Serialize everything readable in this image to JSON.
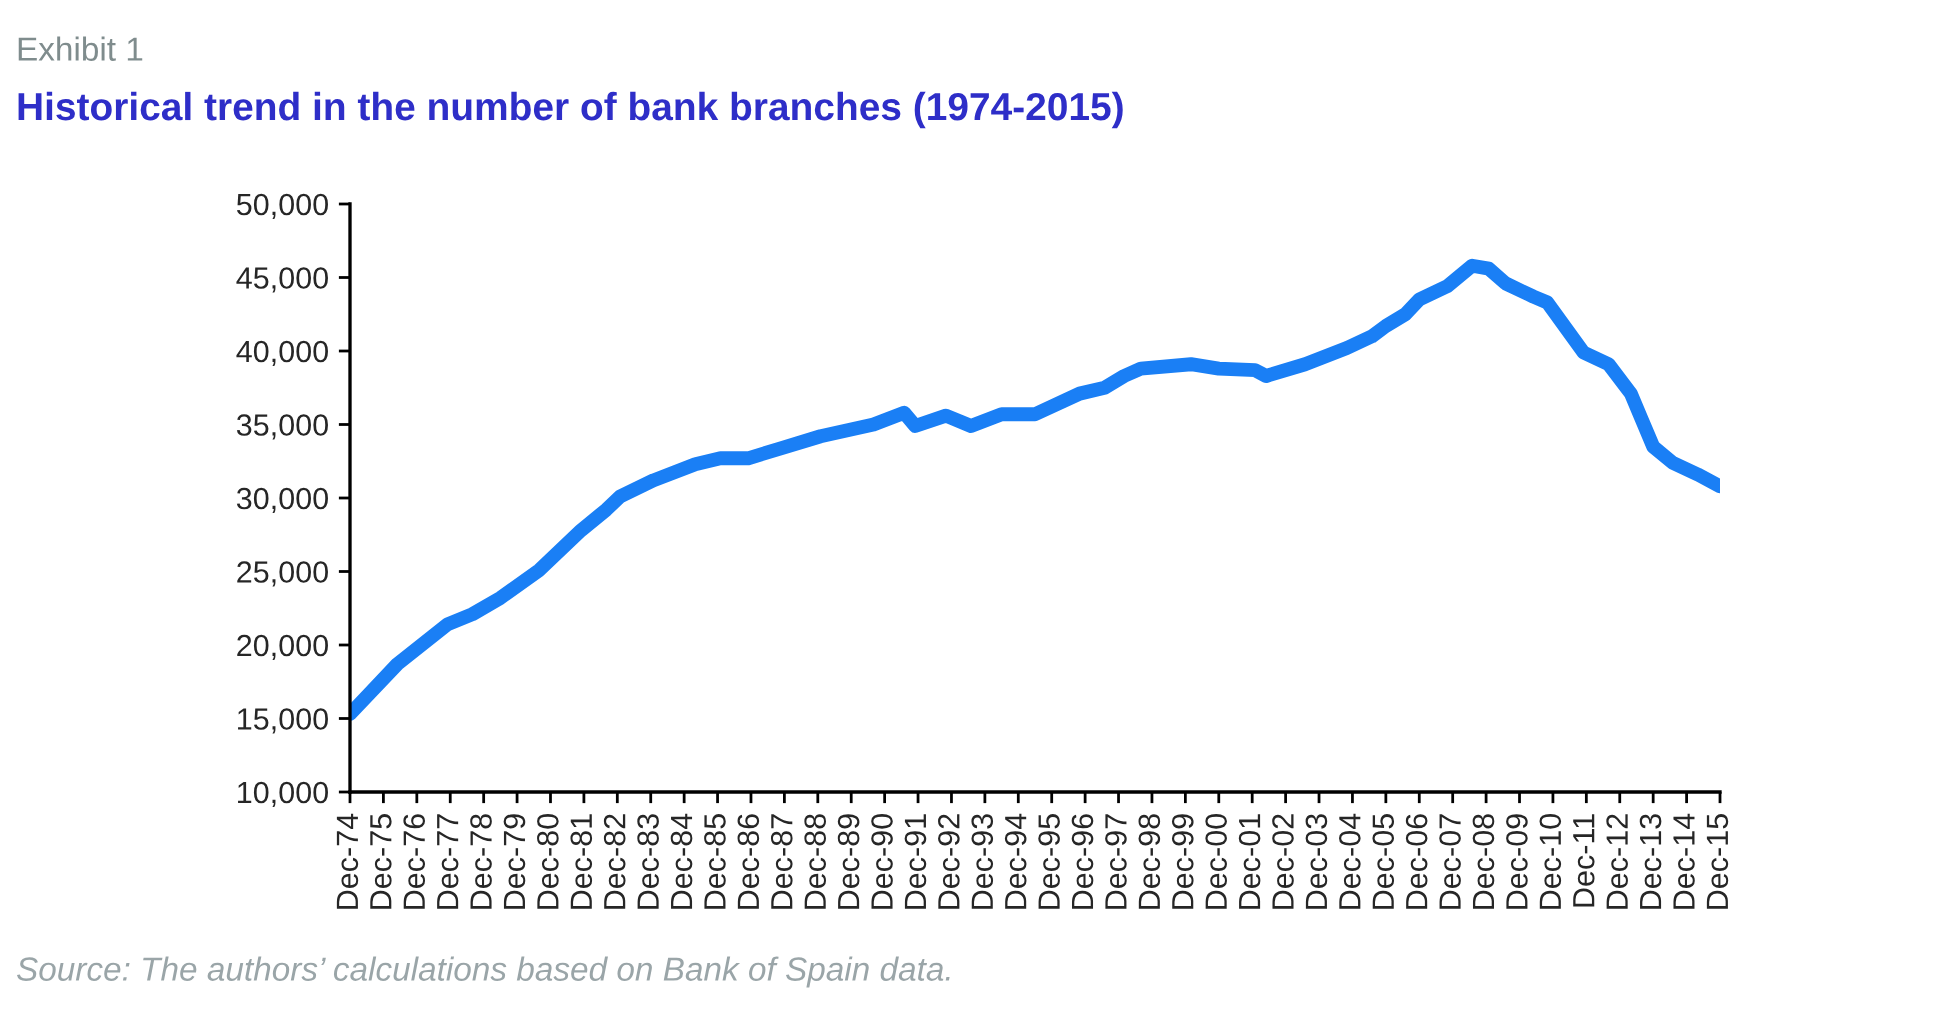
{
  "chart_data": {
    "type": "line",
    "title": "Historical trend in the number of bank branches (1974-2015)",
    "annotations": [
      "Exhibit 1",
      "Source: The authors’ calculations based on Bank of Spain data."
    ],
    "x": [
      "1974-12",
      "1975-07",
      "1976-05",
      "1977-11",
      "1978-08",
      "1979-06",
      "1980-08",
      "1981-11",
      "1982-08",
      "1983-01",
      "1984-01",
      "1985-04",
      "1986-01",
      "1986-11",
      "1987-11",
      "1989-01",
      "1990-08",
      "1991-07",
      "1991-11",
      "1992-10",
      "1993-07",
      "1994-06",
      "1995-06",
      "1996-10",
      "1997-07",
      "1998-02",
      "1998-08",
      "2000-02",
      "2000-12",
      "2002-01",
      "2002-05",
      "2003-07",
      "2004-10",
      "2005-07",
      "2005-12",
      "2006-07",
      "2006-12",
      "2007-10",
      "2008-07",
      "2009-01",
      "2009-07",
      "2010-05",
      "2010-10",
      "2011-11",
      "2012-08",
      "2013-04",
      "2013-08",
      "2013-12",
      "2014-07",
      "2015-04",
      "2015-12"
    ],
    "series": [
      {
        "color": "#1a7ff5",
        "values": [
          15300,
          16700,
          18700,
          21400,
          22100,
          23200,
          25100,
          27800,
          29200,
          30100,
          31200,
          32300,
          32700,
          32700,
          33400,
          34200,
          35000,
          35800,
          34900,
          35600,
          34900,
          35700,
          35700,
          37100,
          37500,
          38300,
          38800,
          39100,
          38800,
          38700,
          38300,
          39100,
          40200,
          41000,
          41700,
          42500,
          43500,
          44400,
          45800,
          45600,
          44600,
          43700,
          43300,
          39900,
          39100,
          37100,
          35300,
          33500,
          32400,
          31600,
          30800
        ]
      }
    ],
    "xlim": [
      "1974-12",
      "2015-12"
    ],
    "xticks": [
      {
        "value": "1974-12",
        "label": "Dec-74"
      },
      {
        "value": "1975-12",
        "label": "Dec-75"
      },
      {
        "value": "1976-12",
        "label": "Dec-76"
      },
      {
        "value": "1977-12",
        "label": "Dec-77"
      },
      {
        "value": "1978-12",
        "label": "Dec-78"
      },
      {
        "value": "1979-12",
        "label": "Dec-79"
      },
      {
        "value": "1980-12",
        "label": "Dec-80"
      },
      {
        "value": "1981-12",
        "label": "Dec-81"
      },
      {
        "value": "1982-12",
        "label": "Dec-82"
      },
      {
        "value": "1983-12",
        "label": "Dec-83"
      },
      {
        "value": "1984-12",
        "label": "Dec-84"
      },
      {
        "value": "1985-12",
        "label": "Dec-85"
      },
      {
        "value": "1986-12",
        "label": "Dec-86"
      },
      {
        "value": "1987-12",
        "label": "Dec-87"
      },
      {
        "value": "1988-12",
        "label": "Dec-88"
      },
      {
        "value": "1989-12",
        "label": "Dec-89"
      },
      {
        "value": "1990-12",
        "label": "Dec-90"
      },
      {
        "value": "1991-12",
        "label": "Dec-91"
      },
      {
        "value": "1992-12",
        "label": "Dec-92"
      },
      {
        "value": "1993-12",
        "label": "Dec-93"
      },
      {
        "value": "1994-12",
        "label": "Dec-94"
      },
      {
        "value": "1995-12",
        "label": "Dec-95"
      },
      {
        "value": "1996-12",
        "label": "Dec-96"
      },
      {
        "value": "1997-12",
        "label": "Dec-97"
      },
      {
        "value": "1998-12",
        "label": "Dec-98"
      },
      {
        "value": "1999-12",
        "label": "Dec-99"
      },
      {
        "value": "2000-12",
        "label": "Dec-00"
      },
      {
        "value": "2001-12",
        "label": "Dec-01"
      },
      {
        "value": "2002-12",
        "label": "Dec-02"
      },
      {
        "value": "2003-12",
        "label": "Dec-03"
      },
      {
        "value": "2004-12",
        "label": "Dec-04"
      },
      {
        "value": "2005-12",
        "label": "Dec-05"
      },
      {
        "value": "2006-12",
        "label": "Dec-06"
      },
      {
        "value": "2007-12",
        "label": "Dec-07"
      },
      {
        "value": "2008-12",
        "label": "Dec-08"
      },
      {
        "value": "2009-12",
        "label": "Dec-09"
      },
      {
        "value": "2010-12",
        "label": "Dec-10"
      },
      {
        "value": "2011-12",
        "label": "Dec-11"
      },
      {
        "value": "2012-12",
        "label": "Dec-12"
      },
      {
        "value": "2013-12",
        "label": "Dec-13"
      },
      {
        "value": "2014-12",
        "label": "Dec-14"
      },
      {
        "value": "2015-12",
        "label": "Dec-15"
      }
    ],
    "ylim": [
      10000,
      50000
    ],
    "yticks": [
      {
        "value": 10000,
        "label": "10,000"
      },
      {
        "value": 15000,
        "label": "15,000"
      },
      {
        "value": 20000,
        "label": "20,000"
      },
      {
        "value": 25000,
        "label": "25,000"
      },
      {
        "value": 30000,
        "label": "30,000"
      },
      {
        "value": 35000,
        "label": "35,000"
      },
      {
        "value": 40000,
        "label": "40,000"
      },
      {
        "value": 45000,
        "label": "45,000"
      },
      {
        "value": 50000,
        "label": "50,000"
      }
    ],
    "grid": false,
    "marker": "none",
    "line_style": "solid"
  }
}
